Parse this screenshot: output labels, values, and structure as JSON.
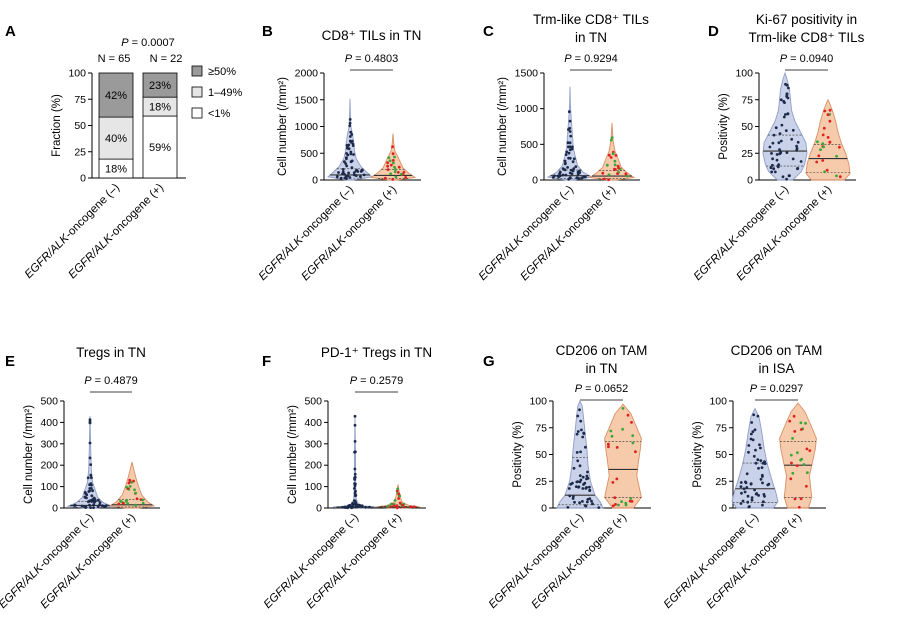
{
  "colors": {
    "neg_fill": "#c7d0e8",
    "neg_stroke": "#8a98c4",
    "pos_fill": "#f6c9a8",
    "pos_stroke": "#d98a5c",
    "dot_neg": "#1d2a4a",
    "dot_red": "#e02020",
    "dot_green": "#3aa63a",
    "bar_high": "#9a9a9a",
    "bar_mid": "#e6e6e6",
    "bar_low": "#ffffff"
  },
  "chart_data": [
    {
      "id": "A",
      "panel_label": "A",
      "type": "bar",
      "stacked": true,
      "title": [],
      "pvalue": "P = 0.0007",
      "categories": [
        "EGFR/ALK-oncogene (–)",
        "EGFR/ALK-oncogene (+)"
      ],
      "n_labels": [
        "N = 65",
        "N = 22"
      ],
      "ylabel": "Fraction (%)",
      "ylim": [
        0,
        100
      ],
      "yticks": [
        0,
        25,
        50,
        75,
        100
      ],
      "series": [
        {
          "name": "<1%",
          "values": [
            18,
            59
          ],
          "labels": [
            "18%",
            "59%"
          ],
          "color": "#ffffff"
        },
        {
          "name": "1–49%",
          "values": [
            40,
            18
          ],
          "labels": [
            "40%",
            "18%"
          ],
          "color": "#e6e6e6"
        },
        {
          "name": "≥50%",
          "values": [
            42,
            23
          ],
          "labels": [
            "42%",
            "23%"
          ],
          "color": "#9a9a9a"
        }
      ],
      "legend": [
        "≥50%",
        "1–49%",
        "<1%"
      ]
    },
    {
      "id": "B",
      "panel_label": "B",
      "type": "violin",
      "title": [
        "CD8⁺ TILs in TN"
      ],
      "pvalue": "P = 0.4803",
      "ylabel": "Cell number (/mm²)",
      "ylim": [
        0,
        2000
      ],
      "yticks": [
        0,
        500,
        1000,
        1500,
        2000
      ],
      "categories": [
        "EGFR/ALK-oncogene (–)",
        "EGFR/ALK-oncogene (+)"
      ],
      "groups": [
        {
          "max": 1520,
          "median": 95,
          "q1": 35,
          "q3": 210,
          "density": [
            [
              0,
              0.15
            ],
            [
              60,
              1
            ],
            [
              150,
              0.75
            ],
            [
              250,
              0.5
            ],
            [
              400,
              0.28
            ],
            [
              550,
              0.2
            ],
            [
              700,
              0.17
            ],
            [
              850,
              0.12
            ],
            [
              1000,
              0.04
            ],
            [
              1200,
              0.02
            ],
            [
              1520,
              0
            ]
          ]
        },
        {
          "max": 870,
          "median": 85,
          "q1": 30,
          "q3": 200,
          "density": [
            [
              0,
              0.2
            ],
            [
              50,
              1
            ],
            [
              130,
              0.7
            ],
            [
              230,
              0.45
            ],
            [
              350,
              0.32
            ],
            [
              450,
              0.2
            ],
            [
              550,
              0.08
            ],
            [
              700,
              0.03
            ],
            [
              870,
              0
            ]
          ]
        }
      ]
    },
    {
      "id": "C",
      "panel_label": "C",
      "type": "violin",
      "title": [
        "Trm-like CD8⁺ TILs",
        "in TN"
      ],
      "pvalue": "P = 0.9294",
      "ylabel": "Cell number (/mm²)",
      "ylim": [
        0,
        1500
      ],
      "yticks": [
        0,
        500,
        1000,
        1500
      ],
      "categories": [
        "EGFR/ALK-oncogene (–)",
        "EGFR/ALK-oncogene (+)"
      ],
      "groups": [
        {
          "max": 1310,
          "median": 60,
          "q1": 20,
          "q3": 140,
          "density": [
            [
              0,
              0.2
            ],
            [
              40,
              1
            ],
            [
              110,
              0.6
            ],
            [
              200,
              0.35
            ],
            [
              320,
              0.25
            ],
            [
              450,
              0.15
            ],
            [
              600,
              0.12
            ],
            [
              850,
              0.06
            ],
            [
              1050,
              0.02
            ],
            [
              1310,
              0
            ]
          ]
        },
        {
          "max": 800,
          "median": 55,
          "q1": 18,
          "q3": 130,
          "density": [
            [
              0,
              0.2
            ],
            [
              35,
              1
            ],
            [
              100,
              0.7
            ],
            [
              180,
              0.42
            ],
            [
              280,
              0.3
            ],
            [
              400,
              0.14
            ],
            [
              550,
              0.05
            ],
            [
              800,
              0
            ]
          ]
        }
      ]
    },
    {
      "id": "D",
      "panel_label": "D",
      "type": "violin",
      "title": [
        "Ki-67 positivity in",
        "Trm-like CD8⁺ TILs"
      ],
      "pvalue": "P = 0.0940",
      "ylabel": "Positivity (%)",
      "ylim": [
        0,
        100
      ],
      "yticks": [
        0,
        25,
        50,
        75,
        100
      ],
      "categories": [
        "EGFR/ALK-oncogene (–)",
        "EGFR/ALK-oncogene (+)"
      ],
      "groups": [
        {
          "max": 100,
          "median": 27,
          "q1": 13,
          "q3": 42,
          "density": [
            [
              0,
              0.35
            ],
            [
              8,
              0.75
            ],
            [
              15,
              0.9
            ],
            [
              25,
              1
            ],
            [
              35,
              0.95
            ],
            [
              45,
              0.7
            ],
            [
              55,
              0.45
            ],
            [
              65,
              0.3
            ],
            [
              75,
              0.25
            ],
            [
              85,
              0.2
            ],
            [
              95,
              0.08
            ],
            [
              100,
              0
            ]
          ]
        },
        {
          "max": 75,
          "median": 20,
          "q1": 7,
          "q3": 33,
          "density": [
            [
              0,
              0.75
            ],
            [
              6,
              1
            ],
            [
              15,
              0.95
            ],
            [
              25,
              0.8
            ],
            [
              35,
              0.6
            ],
            [
              45,
              0.45
            ],
            [
              55,
              0.35
            ],
            [
              65,
              0.2
            ],
            [
              72,
              0.07
            ],
            [
              75,
              0
            ]
          ]
        }
      ]
    },
    {
      "id": "E",
      "panel_label": "E",
      "type": "violin",
      "title": [
        "Tregs in TN"
      ],
      "pvalue": "P = 0.4879",
      "ylabel": "Cell number (/mm²)",
      "ylim": [
        0,
        500
      ],
      "yticks": [
        0,
        100,
        200,
        300,
        400,
        500
      ],
      "categories": [
        "EGFR/ALK-oncogene (–)",
        "EGFR/ALK-oncogene (+)"
      ],
      "groups": [
        {
          "max": 430,
          "median": 12,
          "q1": 4,
          "q3": 30,
          "density": [
            [
              0,
              0.3
            ],
            [
              8,
              1
            ],
            [
              25,
              0.6
            ],
            [
              50,
              0.35
            ],
            [
              80,
              0.25
            ],
            [
              120,
              0.12
            ],
            [
              180,
              0.06
            ],
            [
              280,
              0.03
            ],
            [
              430,
              0
            ]
          ]
        },
        {
          "max": 215,
          "median": 15,
          "q1": 5,
          "q3": 40,
          "density": [
            [
              0,
              0.3
            ],
            [
              10,
              1
            ],
            [
              30,
              0.7
            ],
            [
              60,
              0.45
            ],
            [
              100,
              0.3
            ],
            [
              140,
              0.18
            ],
            [
              180,
              0.08
            ],
            [
              215,
              0
            ]
          ]
        }
      ]
    },
    {
      "id": "F",
      "panel_label": "F",
      "type": "violin",
      "title": [
        "PD-1⁺ Tregs in TN"
      ],
      "pvalue": "P = 0.2579",
      "ylabel": "Cell number (/mm²)",
      "ylim": [
        0,
        500
      ],
      "yticks": [
        0,
        100,
        200,
        300,
        400,
        500
      ],
      "categories": [
        "EGFR/ALK-oncogene (–)",
        "EGFR/ALK-oncogene (+)"
      ],
      "groups": [
        {
          "max": 430,
          "median": 3,
          "q1": 0,
          "q3": 6,
          "density": [
            [
              0,
              0.4
            ],
            [
              4,
              1
            ],
            [
              10,
              0.4
            ],
            [
              20,
              0.15
            ],
            [
              40,
              0.06
            ],
            [
              100,
              0.03
            ],
            [
              280,
              0.02
            ],
            [
              430,
              0
            ]
          ]
        },
        {
          "max": 110,
          "median": 4,
          "q1": 0,
          "q3": 8,
          "density": [
            [
              0,
              0.4
            ],
            [
              5,
              1
            ],
            [
              12,
              0.5
            ],
            [
              25,
              0.2
            ],
            [
              50,
              0.1
            ],
            [
              80,
              0.05
            ],
            [
              110,
              0
            ]
          ]
        }
      ]
    },
    {
      "id": "G1",
      "panel_label": "G",
      "type": "violin",
      "title": [
        "CD206 on TAM",
        "in TN"
      ],
      "pvalue": "P = 0.0652",
      "ylabel": "Positivity (%)",
      "ylim": [
        0,
        100
      ],
      "yticks": [
        0,
        25,
        50,
        75,
        100
      ],
      "categories": [
        "EGFR/ALK-oncogene (–)",
        "EGFR/ALK-oncogene (+)"
      ],
      "groups": [
        {
          "max": 100,
          "median": 12,
          "q1": 3,
          "q3": 47,
          "density": [
            [
              0,
              1
            ],
            [
              5,
              0.9
            ],
            [
              12,
              0.65
            ],
            [
              25,
              0.45
            ],
            [
              40,
              0.35
            ],
            [
              55,
              0.3
            ],
            [
              70,
              0.22
            ],
            [
              85,
              0.15
            ],
            [
              95,
              0.1
            ],
            [
              100,
              0
            ]
          ]
        },
        {
          "max": 97,
          "median": 36,
          "q1": 10,
          "q3": 62,
          "density": [
            [
              0,
              0.45
            ],
            [
              10,
              0.8
            ],
            [
              20,
              0.7
            ],
            [
              30,
              0.6
            ],
            [
              40,
              0.65
            ],
            [
              55,
              0.75
            ],
            [
              65,
              0.8
            ],
            [
              75,
              0.6
            ],
            [
              88,
              0.35
            ],
            [
              97,
              0
            ]
          ]
        }
      ]
    },
    {
      "id": "G2",
      "panel_label": "",
      "type": "violin",
      "title": [
        "CD206 on TAM",
        "in ISA"
      ],
      "pvalue": "P = 0.0297",
      "ylabel": "Positivity (%)",
      "ylim": [
        0,
        100
      ],
      "yticks": [
        0,
        25,
        50,
        75,
        100
      ],
      "categories": [
        "EGFR/ALK-oncogene (–)",
        "EGFR/ALK-oncogene (+)"
      ],
      "groups": [
        {
          "max": 93,
          "median": 18,
          "q1": 5,
          "q3": 42,
          "density": [
            [
              0,
              0.8
            ],
            [
              6,
              1
            ],
            [
              15,
              0.9
            ],
            [
              25,
              0.75
            ],
            [
              40,
              0.55
            ],
            [
              55,
              0.4
            ],
            [
              70,
              0.3
            ],
            [
              85,
              0.18
            ],
            [
              93,
              0
            ]
          ]
        },
        {
          "max": 98,
          "median": 40,
          "q1": 10,
          "q3": 62,
          "density": [
            [
              0,
              0.45
            ],
            [
              10,
              0.6
            ],
            [
              20,
              0.55
            ],
            [
              30,
              0.5
            ],
            [
              40,
              0.6
            ],
            [
              55,
              0.75
            ],
            [
              65,
              0.8
            ],
            [
              78,
              0.55
            ],
            [
              90,
              0.3
            ],
            [
              98,
              0
            ]
          ]
        }
      ]
    }
  ]
}
